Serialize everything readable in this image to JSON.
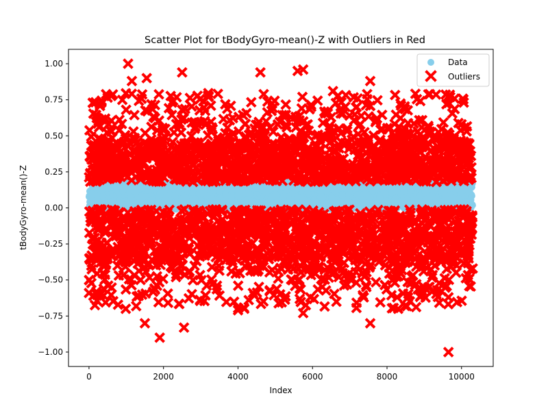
{
  "chart_data": {
    "type": "scatter",
    "title": "Scatter Plot for tBodyGyro-mean()-Z with Outliers in Red",
    "xlabel": "Index",
    "ylabel": "tBodyGyro-mean()-Z",
    "xlim": [
      -550,
      10850
    ],
    "ylim": [
      -1.1,
      1.1
    ],
    "xticks": [
      0,
      2000,
      4000,
      6000,
      8000,
      10000
    ],
    "xtick_labels": [
      "0",
      "2000",
      "4000",
      "6000",
      "8000",
      "10000"
    ],
    "yticks": [
      -1.0,
      -0.75,
      -0.5,
      -0.25,
      0.0,
      0.25,
      0.5,
      0.75,
      1.0
    ],
    "ytick_labels": [
      "−1.00",
      "−0.75",
      "−0.50",
      "−0.25",
      "0.00",
      "0.25",
      "0.50",
      "0.75",
      "1.00"
    ],
    "grid": false,
    "legend_position": "top-right",
    "series": [
      {
        "name": "Data",
        "color": "#87ceeb",
        "marker": "circle",
        "x_range": [
          0,
          10299
        ],
        "band": [
          -0.01,
          0.18
        ],
        "values_summary": "dense band of inlier values"
      },
      {
        "name": "Outliers",
        "color": "#ff0000",
        "marker": "x",
        "x_range": [
          0,
          10299
        ],
        "upper_band": [
          0.18,
          0.45
        ],
        "lower_band": [
          -0.35,
          -0.01
        ],
        "notable_points": [
          {
            "x": 1050,
            "y": 1.0
          },
          {
            "x": 1150,
            "y": 0.88
          },
          {
            "x": 1550,
            "y": 0.9
          },
          {
            "x": 2500,
            "y": 0.94
          },
          {
            "x": 4600,
            "y": 0.94
          },
          {
            "x": 5600,
            "y": 0.95
          },
          {
            "x": 5750,
            "y": 0.96
          },
          {
            "x": 7550,
            "y": 0.88
          },
          {
            "x": 6550,
            "y": 0.81
          },
          {
            "x": 1900,
            "y": -0.9
          },
          {
            "x": 2550,
            "y": -0.83
          },
          {
            "x": 1500,
            "y": -0.8
          },
          {
            "x": 7550,
            "y": -0.8
          },
          {
            "x": 5750,
            "y": -0.73
          },
          {
            "x": 8300,
            "y": -0.7
          },
          {
            "x": 9650,
            "y": -1.0
          },
          {
            "x": 9650,
            "y": -0.62
          },
          {
            "x": 0,
            "y": -0.59
          },
          {
            "x": 200,
            "y": -0.59
          },
          {
            "x": 4000,
            "y": -0.71
          },
          {
            "x": 100,
            "y": 0.73
          },
          {
            "x": 10000,
            "y": 0.58
          },
          {
            "x": 10300,
            "y": -0.42
          }
        ]
      }
    ]
  }
}
